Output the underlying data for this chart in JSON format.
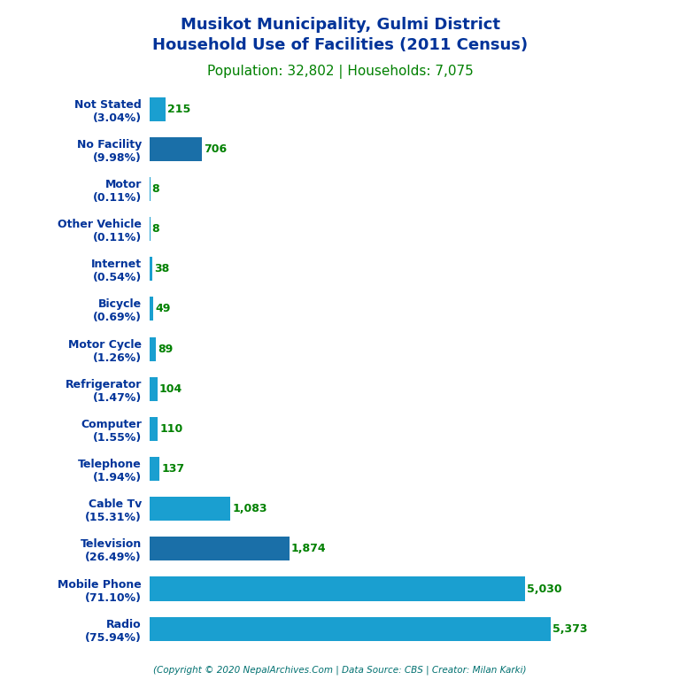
{
  "title_line1": "Musikot Municipality, Gulmi District",
  "title_line2": "Household Use of Facilities (2011 Census)",
  "subtitle": "Population: 32,802 | Households: 7,075",
  "title_color": "#003399",
  "subtitle_color": "#008000",
  "copyright": "(Copyright © 2020 NepalArchives.Com | Data Source: CBS | Creator: Milan Karki)",
  "categories": [
    "Not Stated\n(3.04%)",
    "No Facility\n(9.98%)",
    "Motor\n(0.11%)",
    "Other Vehicle\n(0.11%)",
    "Internet\n(0.54%)",
    "Bicycle\n(0.69%)",
    "Motor Cycle\n(1.26%)",
    "Refrigerator\n(1.47%)",
    "Computer\n(1.55%)",
    "Telephone\n(1.94%)",
    "Cable Tv\n(15.31%)",
    "Television\n(26.49%)",
    "Mobile Phone\n(71.10%)",
    "Radio\n(75.94%)"
  ],
  "values": [
    215,
    706,
    8,
    8,
    38,
    49,
    89,
    104,
    110,
    137,
    1083,
    1874,
    5030,
    5373
  ],
  "bar_colors": [
    "#1a9fd0",
    "#1a6fa8",
    "#1a9fd0",
    "#1a9fd0",
    "#1a9fd0",
    "#1a9fd0",
    "#1a9fd0",
    "#1a9fd0",
    "#1a9fd0",
    "#1a9fd0",
    "#1a9fd0",
    "#1a6fa8",
    "#1a9fd0",
    "#1a9fd0"
  ],
  "value_color": "#008000",
  "bar_height": 0.6,
  "xlim": [
    0,
    6200
  ],
  "background_color": "#ffffff",
  "label_fontsize": 9,
  "value_fontsize": 9,
  "title_fontsize": 13,
  "subtitle_fontsize": 11
}
